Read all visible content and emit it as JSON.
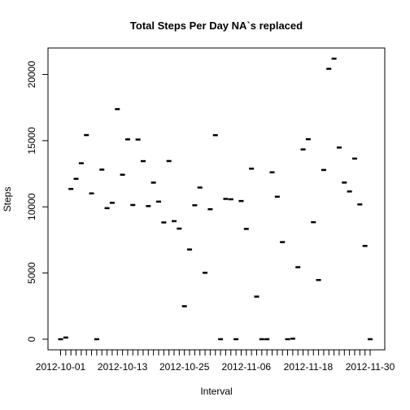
{
  "chart_data": {
    "type": "scatter",
    "title": "Total Steps Per Day NA`s replaced",
    "xlabel": "Interval",
    "ylabel": "Steps",
    "x": [
      "2012-10-01",
      "2012-10-02",
      "2012-10-03",
      "2012-10-04",
      "2012-10-05",
      "2012-10-06",
      "2012-10-07",
      "2012-10-08",
      "2012-10-09",
      "2012-10-10",
      "2012-10-11",
      "2012-10-12",
      "2012-10-13",
      "2012-10-14",
      "2012-10-15",
      "2012-10-16",
      "2012-10-17",
      "2012-10-18",
      "2012-10-19",
      "2012-10-20",
      "2012-10-21",
      "2012-10-22",
      "2012-10-23",
      "2012-10-24",
      "2012-10-25",
      "2012-10-26",
      "2012-10-27",
      "2012-10-28",
      "2012-10-29",
      "2012-10-30",
      "2012-10-31",
      "2012-11-01",
      "2012-11-02",
      "2012-11-03",
      "2012-11-04",
      "2012-11-05",
      "2012-11-06",
      "2012-11-07",
      "2012-11-08",
      "2012-11-09",
      "2012-11-10",
      "2012-11-11",
      "2012-11-12",
      "2012-11-13",
      "2012-11-14",
      "2012-11-15",
      "2012-11-16",
      "2012-11-17",
      "2012-11-18",
      "2012-11-19",
      "2012-11-20",
      "2012-11-21",
      "2012-11-22",
      "2012-11-23",
      "2012-11-24",
      "2012-11-25",
      "2012-11-26",
      "2012-11-27",
      "2012-11-28",
      "2012-11-29",
      "2012-11-30"
    ],
    "y": [
      0,
      126,
      11352,
      12116,
      13294,
      15420,
      11015,
      0,
      12811,
      9900,
      10304,
      17382,
      12426,
      15098,
      10139,
      15084,
      13452,
      10056,
      11829,
      10395,
      8821,
      13460,
      8918,
      8355,
      2492,
      6778,
      10119,
      11458,
      5018,
      9819,
      15414,
      0,
      10600,
      10571,
      0,
      10439,
      8334,
      12883,
      3219,
      0,
      0,
      12608,
      10765,
      7336,
      0,
      41,
      5441,
      14339,
      15110,
      8841,
      4472,
      12787,
      20427,
      21194,
      14478,
      11834,
      11162,
      13646,
      10183,
      7047,
      0
    ],
    "xticks": [
      "2012-10-01",
      "2012-10-13",
      "2012-10-25",
      "2012-11-06",
      "2012-11-18",
      "2012-11-30"
    ],
    "yticks": [
      0,
      5000,
      10000,
      15000,
      20000
    ],
    "ylim": [
      -800,
      22000
    ],
    "grid": false,
    "legend": "none"
  }
}
